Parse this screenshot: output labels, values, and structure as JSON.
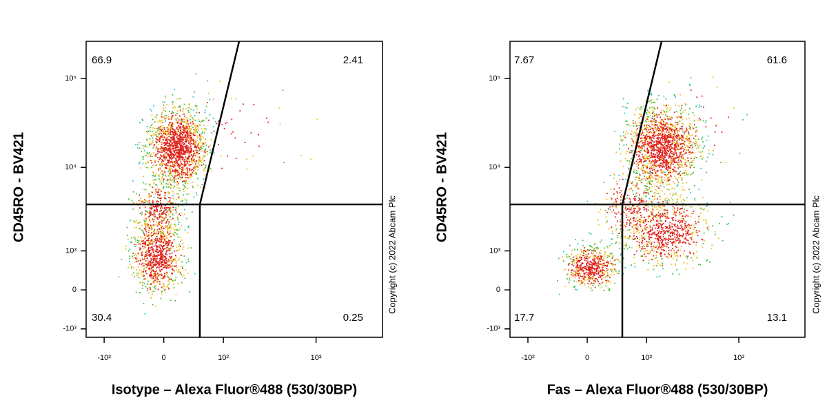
{
  "chart_data": [
    {
      "type": "density",
      "scale": "biexponential",
      "x_label": "Isotype – Alexa Fluor®488 (530/30BP)",
      "y_label": "CD45RO - BV421",
      "xlim": [
        -160,
        5000
      ],
      "ylim": [
        -1310,
        262144
      ],
      "xticks": [
        {
          "value": -100,
          "label": "-10²"
        },
        0,
        {
          "value": 100,
          "label": "10²"
        },
        {
          "value": 1000,
          "label": "10³"
        }
      ],
      "yticks": [
        {
          "value": -1000,
          "label": "-10³"
        },
        0,
        {
          "value": 1000,
          "label": "10³"
        },
        {
          "value": 10000,
          "label": "10⁴"
        },
        {
          "value": 100000,
          "label": "10⁵"
        }
      ],
      "quadrant_percentages": {
        "upper_left": 66.9,
        "upper_right": 2.41,
        "lower_left": 30.4,
        "lower_right": 0.25
      }
    },
    {
      "type": "density",
      "scale": "biexponential",
      "x_label": "Fas – Alexa Fluor®488 (530/30BP)",
      "y_label": "CD45RO - BV421",
      "xlim": [
        -160,
        5000
      ],
      "ylim": [
        -1310,
        262144
      ],
      "xticks": [
        {
          "value": -100,
          "label": "-10²"
        },
        0,
        {
          "value": 100,
          "label": "10²"
        },
        {
          "value": 1000,
          "label": "10³"
        }
      ],
      "yticks": [
        {
          "value": -1000,
          "label": "-10³"
        },
        0,
        {
          "value": 1000,
          "label": "10³"
        },
        {
          "value": 10000,
          "label": "10⁴"
        },
        {
          "value": 100000,
          "label": "10⁵"
        }
      ],
      "quadrant_percentages": {
        "upper_left": 7.67,
        "upper_right": 61.6,
        "lower_left": 17.7,
        "lower_right": 13.1
      }
    }
  ],
  "copyright": "Copyright (c) 2022 Abcam Plc"
}
